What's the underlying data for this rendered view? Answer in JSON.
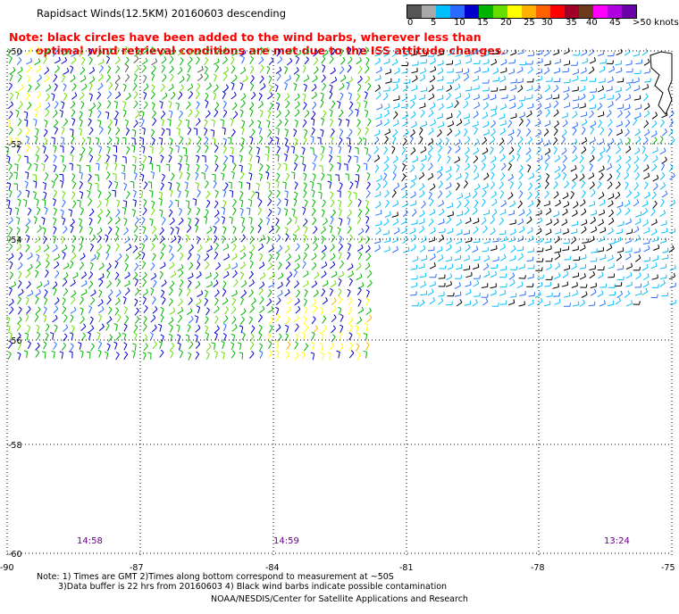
{
  "title": "Rapidsact Winds(12.5KM) 20160603 descending",
  "warning": {
    "line1": "Note: black circles have been added to the wind barbs, wherever less than",
    "line2": "optimal wind retrieval conditions are met due to the ISS attitude changes."
  },
  "legend": {
    "unit": "knots",
    "ticks": [
      "0",
      "5",
      "10",
      "15",
      "20",
      "25",
      "30",
      "35",
      "40",
      "45",
      ">50 knots"
    ],
    "colors": [
      "#555555",
      "#a8a8a8",
      "#00bfff",
      "#2a6bff",
      "#0000cd",
      "#00b400",
      "#66dd00",
      "#ffff00",
      "#ffb000",
      "#ff6000",
      "#ff0000",
      "#a00028",
      "#6b3a1c",
      "#ff00ff",
      "#b000e0",
      "#6a00a8"
    ]
  },
  "map": {
    "lat_labels": [
      "-50",
      "-52",
      "-54",
      "-56",
      "-58",
      "-60"
    ],
    "lon_labels": [
      "-90",
      "-87",
      "-84",
      "-81",
      "-78",
      "-75"
    ],
    "pass_times": [
      "14:58",
      "14:59",
      "13:24"
    ]
  },
  "notes": {
    "line1": "Note: 1) Times are GMT 2)Times along bottom correspond to measurement at ~50S",
    "line2": "3)Data buffer is 22 hrs from 20160603 4) Black wind barbs indicate possible contamination"
  },
  "credit": "NOAA/NESDIS/Center for Satellite Applications and Research"
}
